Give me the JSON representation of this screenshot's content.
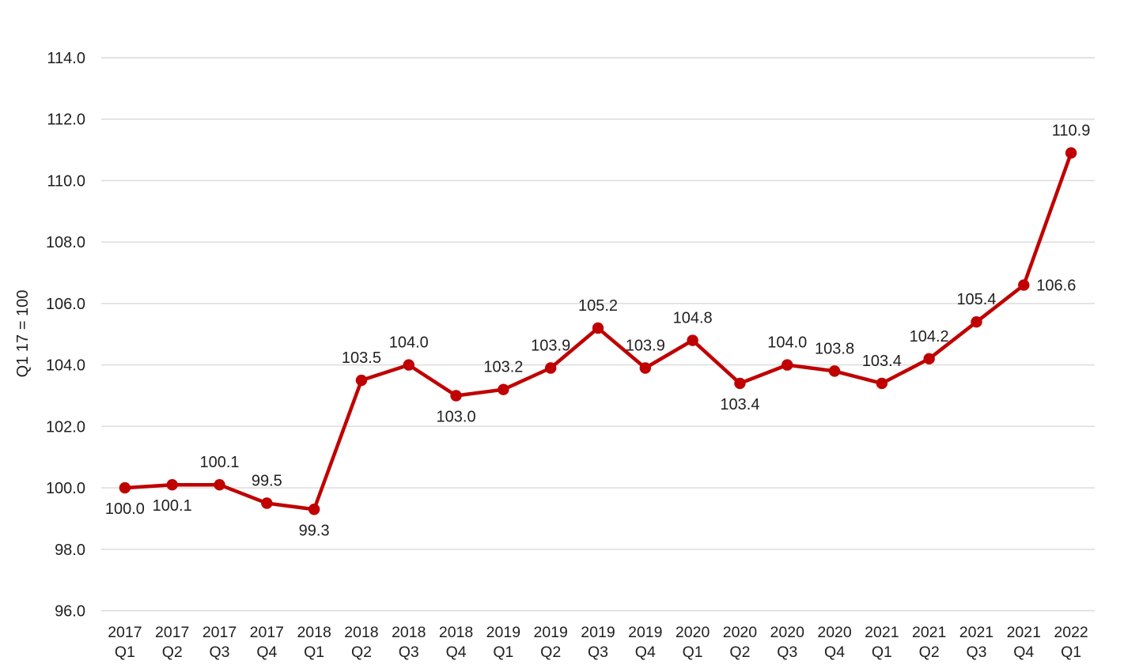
{
  "chart_data": {
    "type": "line",
    "title": "",
    "xlabel": "",
    "ylabel": "Q1 17 = 100",
    "ylim": [
      96.0,
      114.0
    ],
    "ytick_step": 2.0,
    "yticks": [
      "96.0",
      "98.0",
      "100.0",
      "102.0",
      "104.0",
      "106.0",
      "108.0",
      "110.0",
      "112.0",
      "114.0"
    ],
    "grid": true,
    "legend_position": "none",
    "categories": [
      [
        "2017",
        "Q1"
      ],
      [
        "2017",
        "Q2"
      ],
      [
        "2017",
        "Q3"
      ],
      [
        "2017",
        "Q4"
      ],
      [
        "2018",
        "Q1"
      ],
      [
        "2018",
        "Q2"
      ],
      [
        "2018",
        "Q3"
      ],
      [
        "2018",
        "Q4"
      ],
      [
        "2019",
        "Q1"
      ],
      [
        "2019",
        "Q2"
      ],
      [
        "2019",
        "Q3"
      ],
      [
        "2019",
        "Q4"
      ],
      [
        "2020",
        "Q1"
      ],
      [
        "2020",
        "Q2"
      ],
      [
        "2020",
        "Q3"
      ],
      [
        "2020",
        "Q4"
      ],
      [
        "2021",
        "Q1"
      ],
      [
        "2021",
        "Q2"
      ],
      [
        "2021",
        "Q3"
      ],
      [
        "2021",
        "Q4"
      ],
      [
        "2022",
        "Q1"
      ]
    ],
    "values": [
      100.0,
      100.1,
      100.1,
      99.5,
      99.3,
      103.5,
      104.0,
      103.0,
      103.2,
      103.9,
      105.2,
      103.9,
      104.8,
      103.4,
      104.0,
      103.8,
      103.4,
      104.2,
      105.4,
      106.6,
      110.9
    ],
    "data_labels": [
      "100.0",
      "100.1",
      "100.1",
      "99.5",
      "99.3",
      "103.5",
      "104.0",
      "103.0",
      "103.2",
      "103.9",
      "105.2",
      "103.9",
      "104.8",
      "103.4",
      "104.0",
      "103.8",
      "103.4",
      "104.2",
      "105.4",
      "106.6",
      "110.9"
    ],
    "label_positions": [
      "below",
      "below",
      "above",
      "above",
      "below",
      "above",
      "above",
      "below",
      "above",
      "above",
      "above",
      "above",
      "above",
      "below",
      "above",
      "above",
      "above",
      "above",
      "above",
      "right",
      "above"
    ],
    "colors": {
      "line": "#c00000",
      "marker": "#c00000",
      "grid": "#d9d9d9",
      "text": "#1f1f1f"
    }
  }
}
